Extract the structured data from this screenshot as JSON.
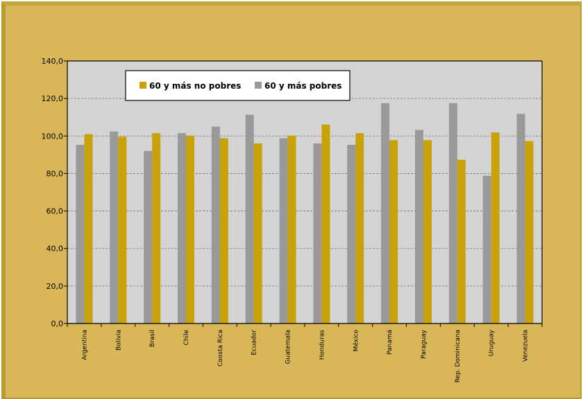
{
  "chart_data": {
    "type": "bar",
    "categories": [
      "Argentina",
      "Bolivia",
      "Brasil",
      "Chile",
      "Coosta Rica",
      "Ecuador",
      "Guatemala",
      "Honduras",
      "México",
      "Panamá",
      "Paraguay",
      "Rep. Dominicana",
      "Uruguay",
      "Venezuela"
    ],
    "series": [
      {
        "name": "60 y más pobres",
        "color": "#999999",
        "values": [
          95.3,
          102.4,
          92.0,
          101.5,
          105.0,
          111.3,
          98.8,
          96.0,
          95.3,
          117.5,
          103.2,
          117.5,
          78.8,
          111.8
        ]
      },
      {
        "name": "60 y más no pobres",
        "color": "#c9a20a",
        "values": [
          101.0,
          99.6,
          101.5,
          100.2,
          98.8,
          96.0,
          100.2,
          106.1,
          101.5,
          97.8,
          97.8,
          87.3,
          101.9,
          97.3
        ]
      }
    ],
    "legend_order": [
      "60 y más no pobres",
      "60 y más pobres"
    ],
    "y_ticks": [
      "0,0",
      "20,0",
      "40,0",
      "60,0",
      "80,0",
      "100,0",
      "120,0",
      "140,0"
    ],
    "ylim": [
      0,
      140
    ],
    "grid": true,
    "legend_position": "top-left inside"
  }
}
